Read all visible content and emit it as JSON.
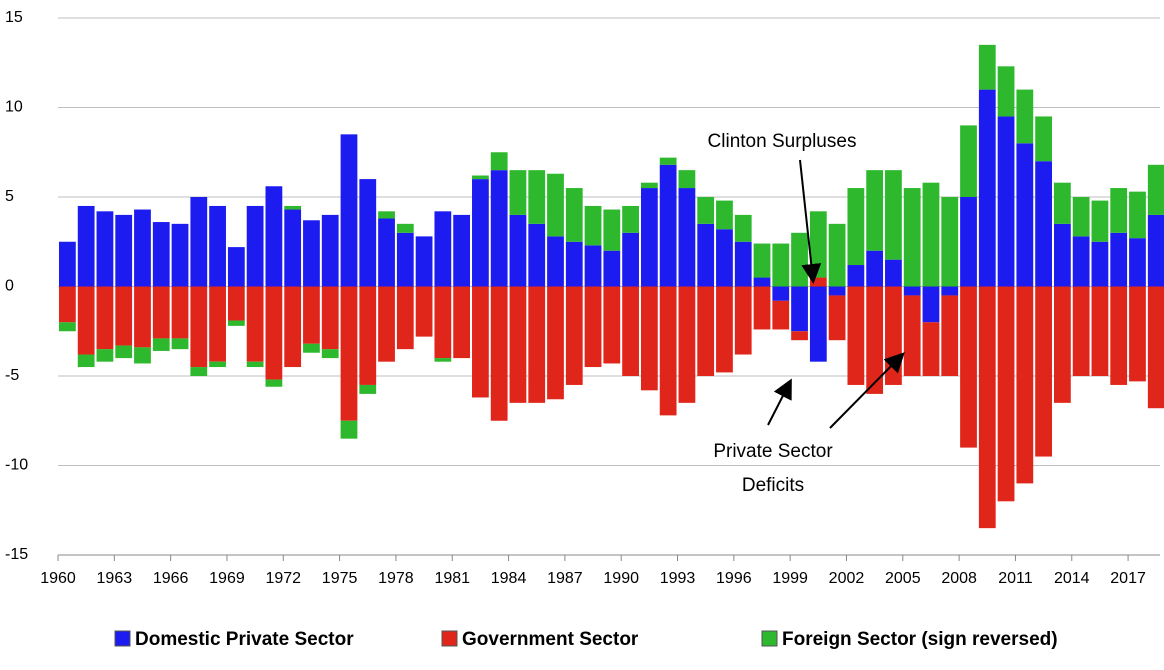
{
  "chart_data": {
    "type": "stacked_bar",
    "x": [
      1960,
      1961,
      1962,
      1963,
      1964,
      1965,
      1966,
      1967,
      1968,
      1969,
      1970,
      1971,
      1972,
      1973,
      1974,
      1975,
      1976,
      1977,
      1978,
      1979,
      1980,
      1981,
      1982,
      1983,
      1984,
      1985,
      1986,
      1987,
      1988,
      1989,
      1990,
      1991,
      1992,
      1993,
      1994,
      1995,
      1996,
      1997,
      1998,
      1999,
      2000,
      2001,
      2002,
      2003,
      2004,
      2005,
      2006,
      2007,
      2008,
      2009,
      2010,
      2011,
      2012,
      2013,
      2014,
      2015,
      2016,
      2017,
      2018
    ],
    "series": [
      {
        "name": "Domestic Private Sector",
        "color": "#1c1cf0",
        "values": [
          2.5,
          4.5,
          4.2,
          4.0,
          4.3,
          3.6,
          3.5,
          5.0,
          4.5,
          2.2,
          4.5,
          5.6,
          4.3,
          3.7,
          4.0,
          8.5,
          6.0,
          3.8,
          3.0,
          2.8,
          4.2,
          4.0,
          6.0,
          6.5,
          4.0,
          3.5,
          2.8,
          2.5,
          2.3,
          2.0,
          3.0,
          5.5,
          6.8,
          5.5,
          3.5,
          3.2,
          2.5,
          0.5,
          -0.8,
          -2.5,
          -4.2,
          -0.5,
          1.2,
          2.0,
          1.5,
          -0.5,
          -2.0,
          -0.5,
          5.0,
          11.0,
          9.5,
          8.0,
          7.0,
          3.5,
          2.8,
          2.5,
          3.0,
          2.7,
          4.0
        ]
      },
      {
        "name": "Government Sector",
        "color": "#e0261b",
        "values": [
          -2.0,
          -3.8,
          -3.5,
          -3.3,
          -3.4,
          -2.9,
          -2.9,
          -4.5,
          -4.2,
          -1.9,
          -4.2,
          -5.2,
          -4.5,
          -3.2,
          -3.5,
          -7.5,
          -5.5,
          -4.2,
          -3.5,
          -2.8,
          -4.0,
          -4.0,
          -6.2,
          -7.5,
          -6.5,
          -6.5,
          -6.3,
          -5.5,
          -4.5,
          -4.3,
          -5.0,
          -5.8,
          -7.2,
          -6.5,
          -5.0,
          -4.8,
          -3.8,
          -2.4,
          -1.6,
          -0.5,
          0.5,
          -2.5,
          -5.5,
          -6.0,
          -5.5,
          -4.5,
          -3.0,
          -4.5,
          -9.0,
          -13.5,
          -12.0,
          -11.0,
          -9.5,
          -6.5,
          -5.0,
          -5.0,
          -5.5,
          -5.3,
          -6.8
        ]
      },
      {
        "name": "Foreign Sector (sign reversed)",
        "color": "#2db82d",
        "values": [
          -0.5,
          -0.7,
          -0.7,
          -0.7,
          -0.9,
          -0.7,
          -0.6,
          -0.5,
          -0.3,
          -0.3,
          -0.3,
          -0.4,
          0.2,
          -0.5,
          -0.5,
          -1.0,
          -0.5,
          0.4,
          0.5,
          0.0,
          -0.2,
          0.0,
          0.2,
          1.0,
          2.5,
          3.0,
          3.5,
          3.0,
          2.2,
          2.3,
          1.5,
          0.3,
          0.4,
          1.0,
          1.5,
          1.6,
          1.5,
          1.9,
          2.4,
          3.0,
          3.7,
          3.5,
          4.3,
          4.5,
          5.0,
          5.5,
          5.8,
          5.0,
          4.0,
          2.5,
          2.8,
          3.0,
          2.5,
          2.3,
          2.2,
          2.3,
          2.5,
          2.6,
          2.8
        ]
      }
    ],
    "xlim": [
      1960,
      2018.7
    ],
    "xticks": [
      1960,
      1963,
      1966,
      1969,
      1972,
      1975,
      1978,
      1981,
      1984,
      1987,
      1990,
      1993,
      1996,
      1999,
      2002,
      2005,
      2008,
      2011,
      2014,
      2017
    ],
    "ylim": [
      -15,
      15
    ],
    "yticks": [
      -15,
      -10,
      -5,
      0,
      5,
      10,
      15
    ],
    "grid": true,
    "annotations": [
      "Clinton Surpluses",
      "Private Sector",
      "Deficits"
    ]
  }
}
